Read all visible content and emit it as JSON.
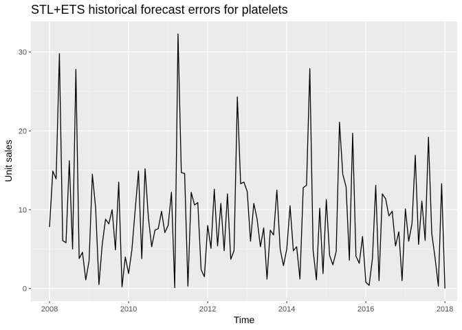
{
  "chart_data": {
    "type": "line",
    "title": "STL+ETS historical forecast errors for platelets",
    "xlabel": "Time",
    "ylabel": "Unit sales",
    "xlim": [
      2007.53,
      2018.31
    ],
    "ylim": [
      -1.6,
      33.9
    ],
    "x_ticks": [
      "2008",
      "2010",
      "2012",
      "2014",
      "2016",
      "2018"
    ],
    "y_ticks": [
      "0",
      "10",
      "20",
      "30"
    ],
    "grid": true,
    "background": "#ebebeb",
    "line_color": "#000000",
    "x_start": 2008,
    "frequency": 12,
    "series": [
      {
        "values": [
          7.8,
          14.9,
          13.9,
          29.8,
          6.1,
          5.8,
          16.2,
          5.0,
          27.8,
          3.8,
          4.6,
          1.1,
          3.5,
          14.5,
          10.2,
          0.5,
          5.6,
          8.8,
          8.2,
          10.0,
          4.9,
          13.5,
          0.2,
          4.0,
          1.9,
          4.9,
          10.0,
          14.9,
          3.8,
          15.2,
          9.0,
          5.3,
          7.4,
          7.6,
          9.8,
          7.1,
          8.0,
          12.2,
          0.1,
          32.3,
          14.7,
          14.6,
          0.3,
          12.2,
          10.6,
          10.9,
          2.4,
          1.5,
          8.0,
          5.1,
          12.6,
          5.4,
          10.8,
          4.8,
          12.0,
          3.7,
          4.8,
          24.3,
          13.3,
          13.5,
          12.3,
          6.0,
          10.8,
          8.8,
          5.3,
          7.7,
          1.2,
          7.4,
          6.8,
          12.5,
          5.0,
          2.9,
          5.0,
          10.5,
          4.8,
          5.3,
          1.2,
          12.8,
          13.1,
          27.9,
          4.8,
          1.1,
          10.2,
          1.9,
          11.3,
          4.2,
          3.0,
          4.7,
          21.1,
          14.5,
          12.9,
          3.6,
          19.7,
          4.1,
          3.2,
          6.6,
          0.8,
          0.4,
          3.8,
          13.1,
          1.0,
          12.0,
          11.4,
          9.2,
          9.8,
          5.4,
          7.2,
          1.0,
          10.1,
          6.0,
          8.2,
          16.9,
          5.6,
          11.1,
          6.1,
          19.2,
          7.0,
          3.9,
          0.3,
          13.3,
          0.0
        ]
      }
    ]
  }
}
